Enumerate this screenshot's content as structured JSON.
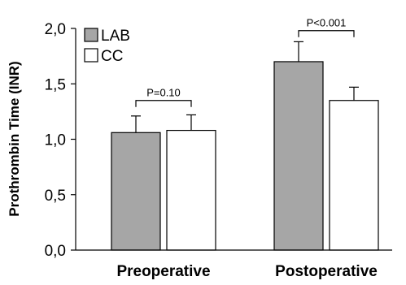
{
  "chart_data": {
    "type": "bar",
    "categories": [
      "Preoperative",
      "Postoperative"
    ],
    "series": [
      {
        "name": "LAB",
        "values": [
          1.06,
          1.7
        ],
        "errors": [
          0.15,
          0.18
        ],
        "color": "#a6a6a6"
      },
      {
        "name": "CC",
        "values": [
          1.08,
          1.35
        ],
        "errors": [
          0.14,
          0.12
        ],
        "color": "#ffffff"
      }
    ],
    "xlabel": "",
    "ylabel": "Prothrombin Time (INR)",
    "ylim": [
      0,
      2.0
    ],
    "yticks": [
      "0,0",
      "0,5",
      "1,0",
      "1,5",
      "2,0"
    ],
    "ytick_values": [
      0,
      0.5,
      1.0,
      1.5,
      2.0
    ],
    "annotations": [
      {
        "category": 0,
        "text": "P=0.10",
        "bracket_level": 1.35
      },
      {
        "category": 1,
        "text": "P<0.001",
        "bracket_level": 1.98
      }
    ],
    "legend": "top-left",
    "grid": false
  }
}
